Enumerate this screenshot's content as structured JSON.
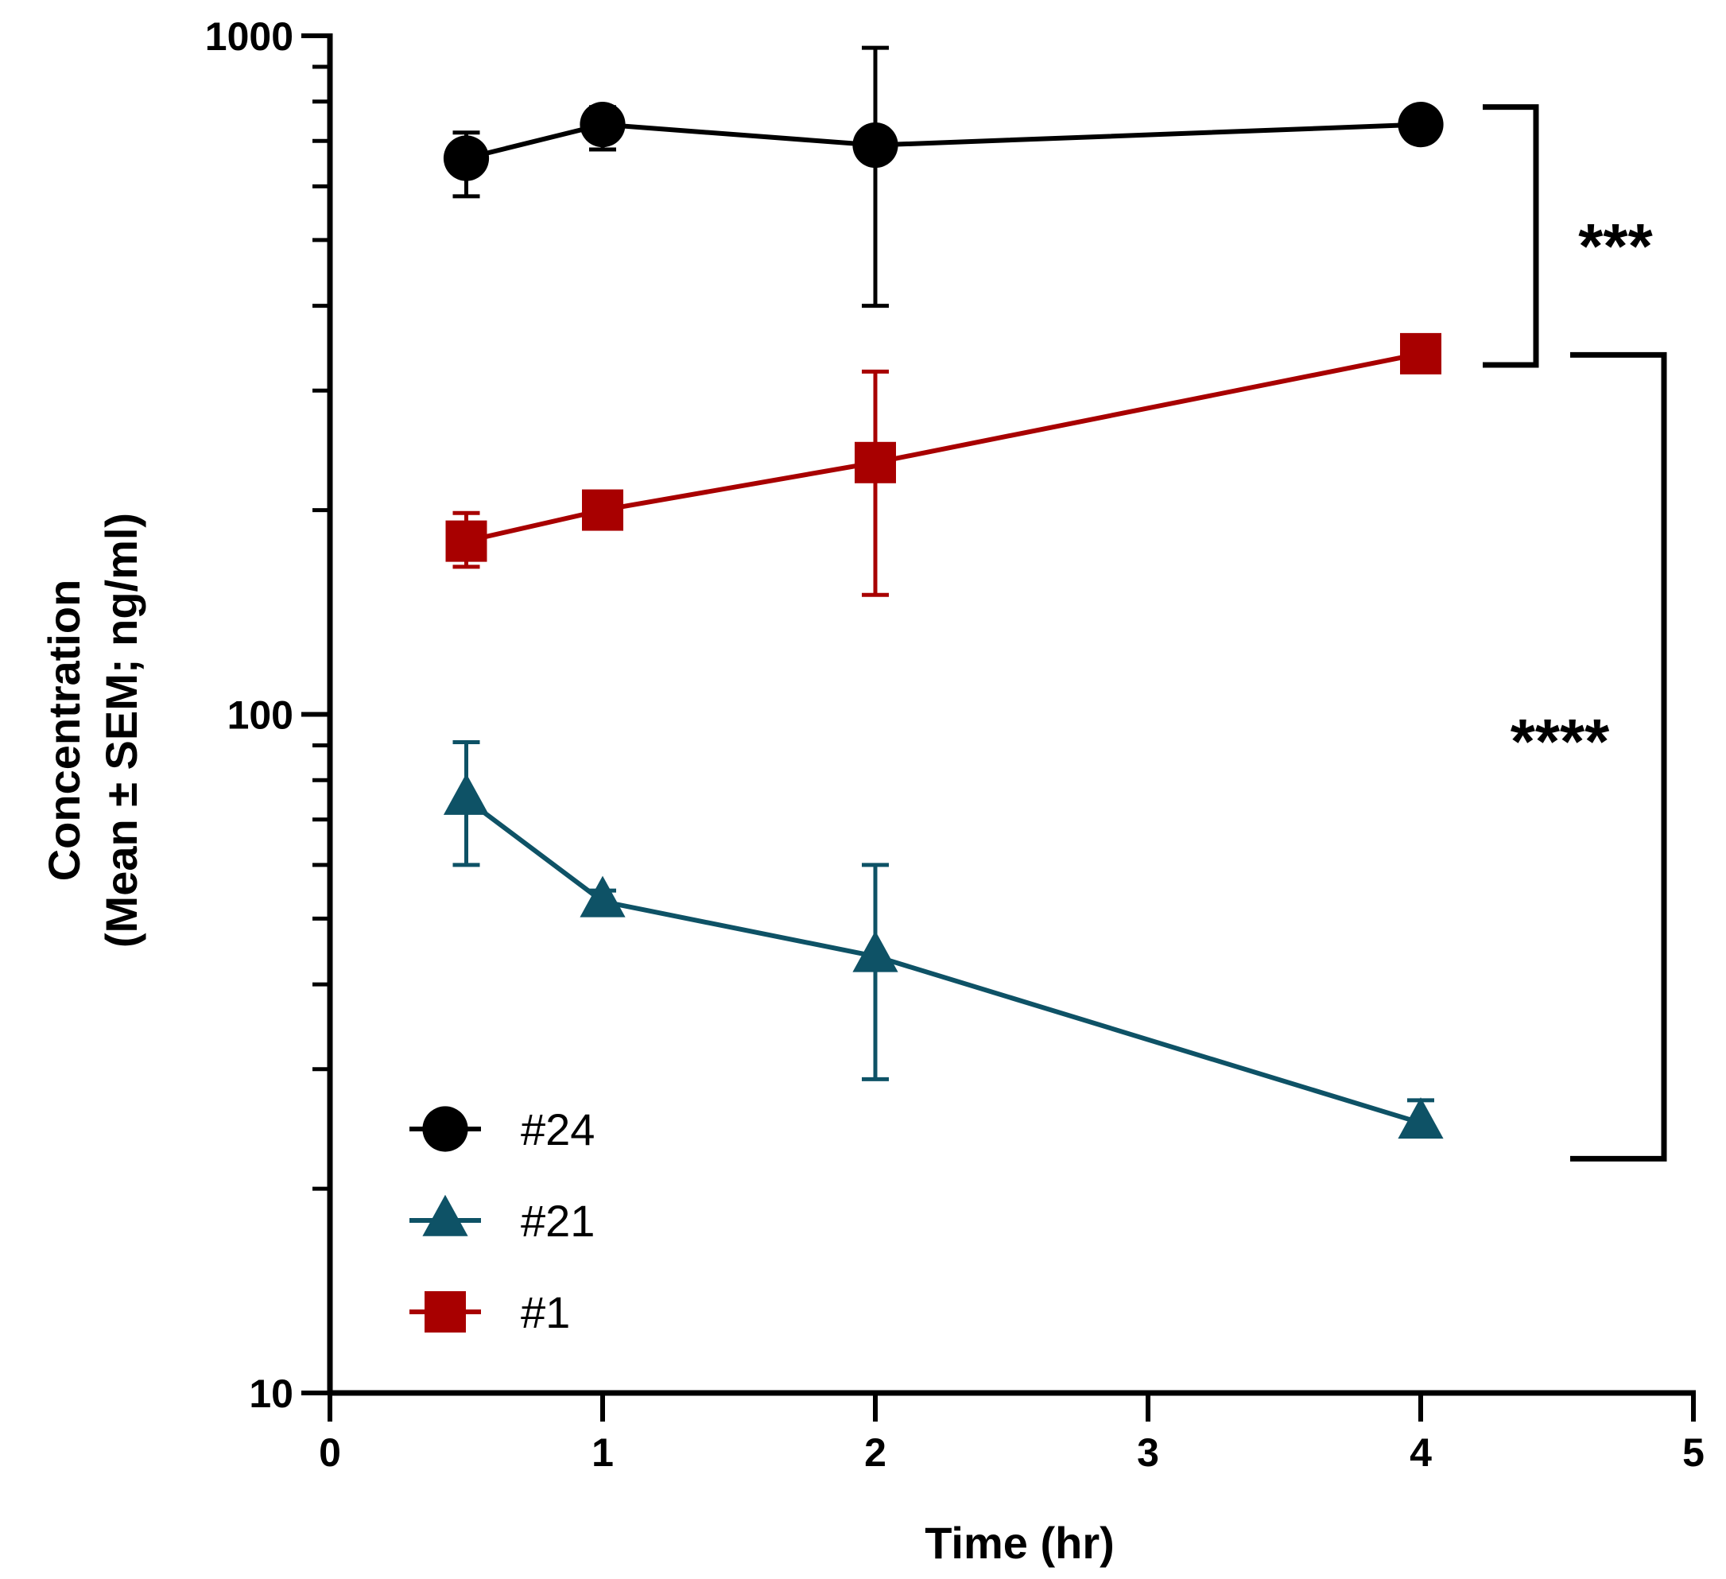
{
  "chart_data": {
    "type": "line",
    "title": "",
    "xlabel": "Time (hr)",
    "ylabel_lines": [
      "Concentration",
      "(Mean ± SEM; ng/ml)"
    ],
    "xlim": [
      0,
      5
    ],
    "ylim": [
      10,
      1000
    ],
    "yscale": "log",
    "x_ticks": [
      0,
      1,
      2,
      3,
      4,
      5
    ],
    "x_tick_labels": [
      "0",
      "1",
      "2",
      "3",
      "4",
      "5"
    ],
    "y_ticks": [
      10,
      100,
      1000
    ],
    "y_tick_labels": [
      "10",
      "100",
      "1000"
    ],
    "grid": false,
    "legend_position": "bottom-left",
    "series": [
      {
        "name": "#24",
        "color": "#000000",
        "marker": "circle",
        "x": [
          0.5,
          1,
          2,
          4
        ],
        "y": [
          660,
          740,
          690,
          740
        ],
        "err_low": [
          580,
          680,
          400,
          740
        ],
        "err_high": [
          720,
          785,
          960,
          740
        ]
      },
      {
        "name": "#21",
        "color": "#0e5266",
        "marker": "triangle",
        "x": [
          0.5,
          1,
          2,
          4
        ],
        "y": [
          75,
          53,
          44,
          25
        ],
        "err_low": [
          60,
          51,
          29,
          24
        ],
        "err_high": [
          91,
          55,
          60,
          27
        ]
      },
      {
        "name": "#1",
        "color": "#a80000",
        "marker": "square",
        "x": [
          0.5,
          1,
          2,
          4
        ],
        "y": [
          180,
          200,
          235,
          340
        ],
        "err_low": [
          165,
          200,
          150,
          340
        ],
        "err_high": [
          198,
          200,
          320,
          340
        ]
      }
    ],
    "annotations": [
      {
        "label": "***",
        "between": [
          "#24",
          "#1"
        ],
        "at_x": 4,
        "y_top": 740,
        "y_bottom": 330
      },
      {
        "label": "****",
        "between": [
          "#1",
          "#21"
        ],
        "at_x": 4,
        "y_top": 335,
        "y_bottom": 22.5
      }
    ]
  }
}
